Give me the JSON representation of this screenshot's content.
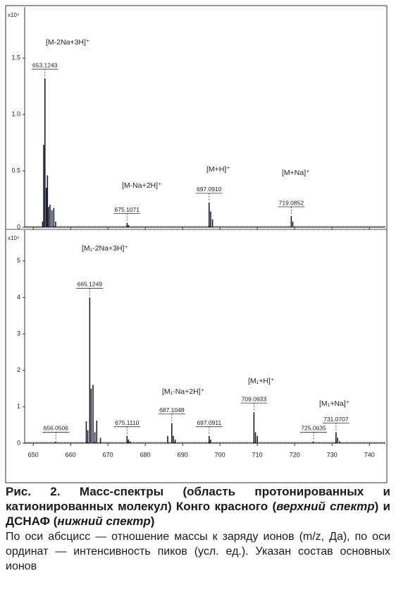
{
  "chart_data": [
    {
      "type": "stick",
      "multiplier": "x10⁴",
      "xlim": [
        647.7,
        744.3
      ],
      "xticks": [
        650,
        660,
        670,
        680,
        690,
        700,
        710,
        720,
        730,
        740
      ],
      "tick_labels": false,
      "ylim": [
        0,
        1.94
      ],
      "yticks": [
        0,
        0.5,
        {
          "value": 1.0,
          "label": "1.0"
        },
        1.5
      ],
      "color": "#1c1c30",
      "x": [
        652.5,
        652.8,
        653.1243,
        653.5,
        653.8,
        654.1,
        654.5,
        655.0,
        655.5,
        656.0,
        675.1071,
        675.5,
        697.091,
        697.5,
        698.0,
        719.0852,
        719.5
      ],
      "values": [
        0.05,
        0.73,
        1.32,
        0.35,
        0.46,
        0.18,
        0.2,
        0.15,
        0.17,
        0.05,
        0.04,
        0.02,
        0.22,
        0.14,
        0.07,
        0.1,
        0.05
      ],
      "peak_labels": [
        {
          "value": 653.1243,
          "label": "653.1243"
        },
        {
          "value": 675.1071,
          "label": "675.1071"
        },
        {
          "value": 697.091,
          "label": "697.0910"
        },
        {
          "value": 719.0852,
          "label": "719.0852"
        }
      ],
      "annotations": [
        "[M-2Na+3H]⁺",
        "[M-Na+2H]⁺",
        "[M+H]⁺",
        "[M+Na]⁺"
      ]
    },
    {
      "type": "stick",
      "multiplier": "x10⁴",
      "xlim": [
        647.7,
        744.3
      ],
      "xticks": [
        650,
        660,
        670,
        680,
        690,
        700,
        710,
        720,
        730,
        740
      ],
      "tick_labels": true,
      "ylim": [
        0,
        5.81
      ],
      "yticks": [
        0,
        1,
        2,
        3,
        4,
        5
      ],
      "color": "#1c1c30",
      "x": [
        656.0506,
        664.2,
        664.6,
        665.1249,
        665.5,
        666.0,
        666.5,
        667.0,
        668.0,
        675.111,
        675.5,
        676.0,
        686.0,
        687.1048,
        687.5,
        688.0,
        697.0911,
        697.5,
        709.0933,
        709.5,
        710.0,
        725.0635,
        731.0707,
        731.5,
        732.0
      ],
      "values": [
        0.05,
        0.6,
        0.35,
        4.0,
        1.5,
        1.6,
        0.3,
        0.62,
        0.15,
        0.2,
        0.1,
        0.05,
        0.2,
        0.55,
        0.2,
        0.1,
        0.2,
        0.1,
        0.85,
        0.3,
        0.2,
        0.05,
        0.3,
        0.15,
        0.05
      ],
      "peak_labels": [
        {
          "value": 656.0506,
          "label": "656.0506"
        },
        {
          "value": 665.1249,
          "label": "665.1249"
        },
        {
          "value": 675.111,
          "label": "675.1110"
        },
        {
          "value": 687.1048,
          "label": "687.1048"
        },
        {
          "value": 697.0911,
          "label": "697.0911"
        },
        {
          "value": 709.0933,
          "label": "709.0933"
        },
        {
          "value": 725.0635,
          "label": "725.0635"
        },
        {
          "value": 731.0707,
          "label": "731.0707"
        }
      ],
      "annotations": [
        "[M₁-2Na+3H]⁺",
        "[M₁-Na+2H]⁺",
        "[M₁+H]⁺",
        "[M₁+Na]⁺"
      ]
    }
  ],
  "caption": {
    "title_parts": [
      "Рис. 2. Масс-спектры (область протонированных и катионированных молекул) Конго красного (",
      "верхний спектр",
      ") и ДСНАФ (",
      "нижний спектр",
      ")"
    ],
    "text": "По оси абсцисс — отношение массы к заряду ионов (m/z, Да), по оси ординат — интенсивность пиков (усл. ед.). Указан состав основных ионов"
  }
}
